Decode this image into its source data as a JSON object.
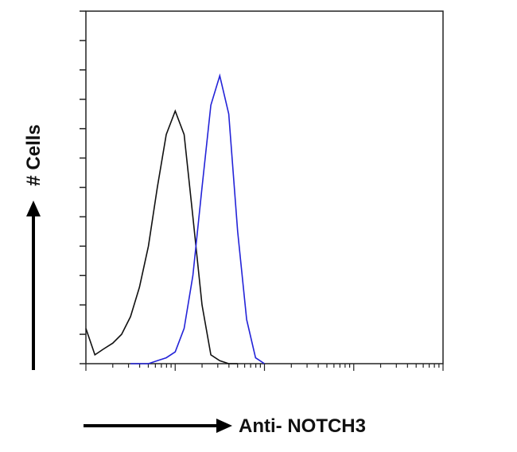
{
  "chart_data": {
    "type": "line",
    "x_label": "Anti- NOTCH3",
    "y_label": "# Cells",
    "x": [
      1,
      1.26,
      1.58,
      2,
      2.51,
      3.16,
      3.98,
      5.01,
      6.31,
      7.94,
      10,
      12.6,
      15.8,
      20,
      25.1,
      31.6,
      39.8,
      50.1,
      63.1,
      79.4,
      100
    ],
    "series": [
      {
        "color": "#111111",
        "values": [
          1.2,
          0.3,
          0.5,
          0.7,
          1.0,
          1.6,
          2.6,
          4.0,
          6.0,
          7.8,
          8.6,
          7.8,
          5.0,
          2.0,
          0.3,
          0.1,
          0,
          0,
          null,
          null,
          null
        ]
      },
      {
        "color": "#2323d8",
        "values": [
          null,
          null,
          null,
          null,
          null,
          0,
          0,
          0,
          0.1,
          0.2,
          0.4,
          1.2,
          3.0,
          6.0,
          8.8,
          9.8,
          8.5,
          4.5,
          1.5,
          0.2,
          0
        ]
      }
    ],
    "x_log": true,
    "xlim": [
      1,
      10000
    ],
    "xticks": [
      1,
      2,
      3,
      4,
      5,
      6,
      7,
      8,
      9,
      10,
      20,
      30,
      40,
      50,
      60,
      70,
      80,
      90,
      100,
      200,
      300,
      400,
      500,
      600,
      700,
      800,
      900,
      1000,
      2000,
      3000,
      4000,
      5000,
      6000,
      7000,
      8000,
      9000,
      10000
    ],
    "ylim": [
      0,
      12
    ],
    "yticks": [
      0,
      1,
      2,
      3,
      4,
      5,
      6,
      7,
      8,
      9,
      10,
      11,
      12
    ]
  }
}
